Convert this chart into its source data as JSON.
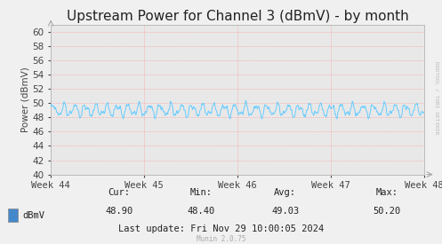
{
  "title": "Upstream Power for Channel 3 (dBmV) - by month",
  "ylabel": "Power (dBmV)",
  "ylim": [
    40,
    61
  ],
  "yticks": [
    40,
    42,
    44,
    46,
    48,
    50,
    52,
    54,
    56,
    58,
    60
  ],
  "xtick_labels": [
    "Week 44",
    "Week 45",
    "Week 46",
    "Week 47",
    "Week 48"
  ],
  "line_color": "#66ccff",
  "bg_color": "#f0f0f0",
  "plot_bg_color": "#e8e8e8",
  "grid_color": "#ff8888",
  "cur": "48.90",
  "min": "48.40",
  "avg": "49.03",
  "max": "50.20",
  "legend_label": "dBmV",
  "legend_color": "#4488cc",
  "last_update": "Last update: Fri Nov 29 10:00:05 2024",
  "munin_version": "Munin 2.0.75",
  "rrdtool_label": "RRDTOOL / TOBI OETIKER",
  "title_fontsize": 11,
  "axis_fontsize": 7.5,
  "tick_fontsize": 7.5,
  "annotation_fontsize": 7.5,
  "mean_value": 49.0,
  "num_points": 800,
  "seed": 42
}
